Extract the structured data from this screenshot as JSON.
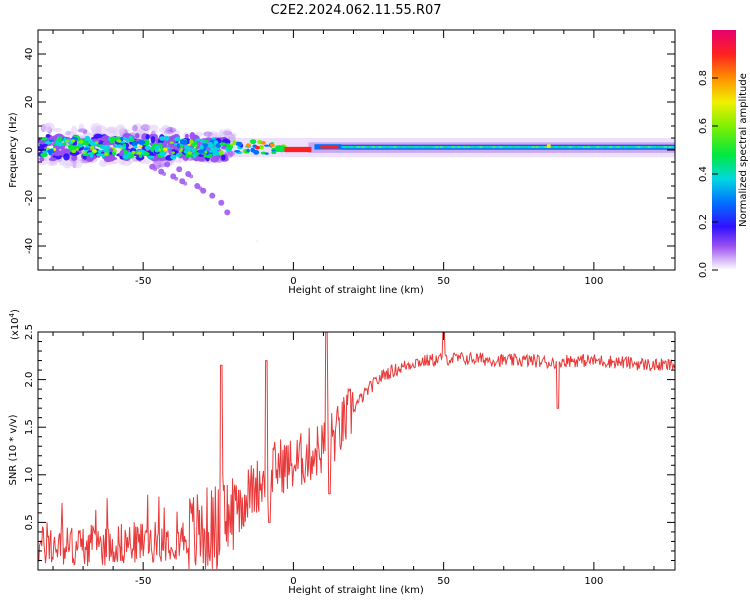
{
  "title": "C2E2.2024.062.11.55.R07",
  "chart_data": [
    {
      "type": "heatmap",
      "xlabel": "Height of straight line (km)",
      "ylabel": "Frequency (Hz)",
      "xlim": [
        -85,
        127
      ],
      "ylim": [
        -50,
        50
      ],
      "xticks": [
        -50,
        0,
        50,
        100
      ],
      "yticks": [
        40,
        20,
        0,
        -20,
        -40
      ],
      "colorbar": {
        "label": "Normalized spectral amplitude",
        "range": [
          0,
          1
        ],
        "ticks": [
          0.0,
          0.2,
          0.4,
          0.6,
          0.8
        ],
        "tick_labels": [
          "0.0",
          "0.2",
          "0.4",
          "0.6",
          "0.8"
        ]
      },
      "features": [
        {
          "name": "scattered-noisy-region",
          "x_range": [
            -85,
            -20
          ],
          "freq_range": [
            -8,
            8
          ],
          "amplitude": [
            0.1,
            0.5
          ]
        },
        {
          "name": "dispersive-tail",
          "x_range": [
            -50,
            -20
          ],
          "freq_range": [
            -27,
            -5
          ],
          "amplitude": [
            0.1,
            0.3
          ]
        },
        {
          "name": "strong-line-near-zero",
          "x_range": [
            -5,
            5
          ],
          "freq": 0,
          "amplitude": 0.95
        },
        {
          "name": "strong-segment",
          "x_range": [
            8,
            15
          ],
          "freq": 1,
          "amplitude": 0.9
        },
        {
          "name": "steady-line",
          "x_range": [
            15,
            127
          ],
          "freq": 1,
          "amplitude": [
            0.45,
            0.6
          ]
        }
      ]
    },
    {
      "type": "line",
      "xlabel": "Height of straight line (km)",
      "ylabel": "SNR (10 * v/v)",
      "y_multiplier": "(x10",
      "y_multiplier_exponent": "4",
      "y_multiplier_close": ")",
      "xlim": [
        -85,
        127
      ],
      "ylim": [
        0,
        2.5
      ],
      "xticks": [
        -50,
        0,
        50,
        100
      ],
      "yticks": [
        0.5,
        1.0,
        1.5,
        2.0,
        2.5
      ],
      "ytick_labels": [
        "0.5",
        "1.0",
        "1.5",
        "2.0",
        "2.5"
      ],
      "color": "#e83a3a",
      "series": [
        {
          "name": "SNR",
          "x": [
            -85,
            -70,
            -55,
            -45,
            -35,
            -25,
            -20,
            -15,
            -10,
            -5,
            0,
            5,
            10,
            15,
            20,
            25,
            30,
            40,
            50,
            60,
            70,
            80,
            85,
            90,
            100,
            110,
            120,
            127
          ],
          "values": [
            0.25,
            0.25,
            0.28,
            0.3,
            0.35,
            0.45,
            0.6,
            0.8,
            0.95,
            1.1,
            1.1,
            1.2,
            1.3,
            1.45,
            1.7,
            1.9,
            2.05,
            2.18,
            2.22,
            2.22,
            2.2,
            2.2,
            2.18,
            2.2,
            2.2,
            2.18,
            2.15,
            2.15
          ]
        }
      ]
    }
  ]
}
